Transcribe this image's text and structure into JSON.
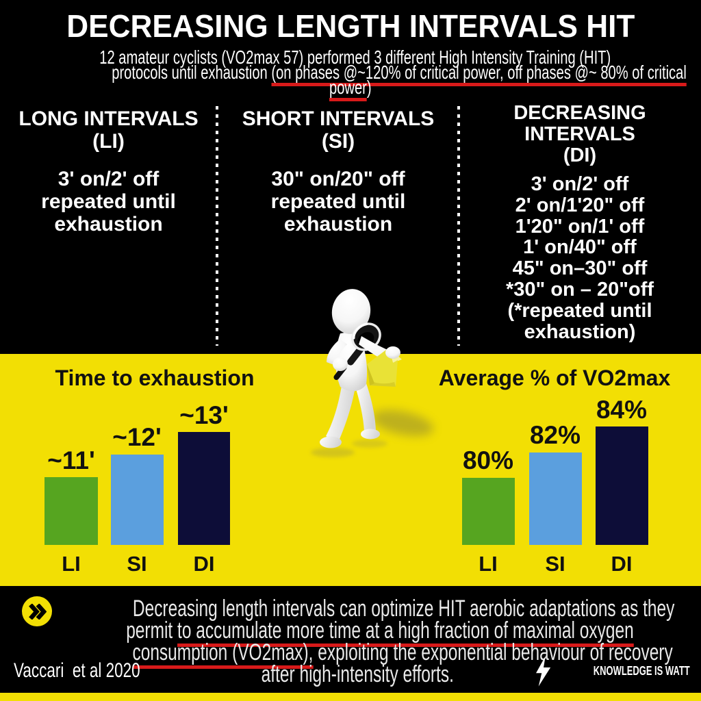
{
  "header": {
    "title": "DECREASING LENGTH INTERVALS HIT",
    "subtitle_line1": "12 amateur cyclists (VO2max 57) performed 3 different High Intensity Training (HIT)",
    "subtitle_line2_pre": "protocols until exhaustion ",
    "subtitle_line2_underlined": "(on phases @~120% of critical power, off phases @~ 80% of critical",
    "subtitle_line3_underlined": "power",
    "subtitle_line3_post": ")"
  },
  "protocols": {
    "li": {
      "title_line1": "LONG INTERVALS",
      "title_line2": "(LI)",
      "lines": [
        "3' on/2' off",
        "repeated until",
        "exhaustion"
      ]
    },
    "si": {
      "title_line1": "SHORT INTERVALS",
      "title_line2": "(SI)",
      "lines": [
        "30\" on/20\" off",
        "repeated until",
        "exhaustion"
      ]
    },
    "di": {
      "title_line1": "DECREASING",
      "title_line2": "INTERVALS",
      "title_line3": "(DI)",
      "lines": [
        "3' on/2' off",
        "2' on/1'20\" off",
        "1'20\" on/1' off",
        "1' on/40\" off",
        "45\" on–30\" off",
        "*30\" on – 20\"off",
        "(*repeated until",
        "exhaustion)"
      ]
    }
  },
  "chart_data": [
    {
      "type": "bar",
      "title": "Time to exhaustion",
      "categories": [
        "LI",
        "SI",
        "DI"
      ],
      "values": [
        11,
        12,
        13
      ],
      "value_labels": [
        "~11'",
        "~12'",
        "~13'"
      ],
      "colors": [
        "#56a520",
        "#5b9fde",
        "#0d0d38"
      ],
      "unit": "minutes",
      "grid": false,
      "legend": false
    },
    {
      "type": "bar",
      "title": "Average % of VO2max",
      "categories": [
        "LI",
        "SI",
        "DI"
      ],
      "values": [
        80,
        82,
        84
      ],
      "value_labels": [
        "80%",
        "82%",
        "84%"
      ],
      "colors": [
        "#56a520",
        "#5b9fde",
        "#0d0d38"
      ],
      "unit": "percent",
      "grid": false,
      "legend": false
    }
  ],
  "footer": {
    "line1": "Decreasing length intervals can optimize HIT aerobic adaptations as they",
    "line2_pre": "permit ",
    "line2_underlined": "to accumulate more time at a high fraction of maximal oxygen",
    "line3_underlined": "consumption (VO2max),",
    "line3_post": " exploiting the exponential behaviour of recovery",
    "line4": "after high-intensity efforts.",
    "citation": "Vaccari  et al 2020",
    "brand": "KNOWLEDGE IS WATT"
  },
  "colors": {
    "background": "#000000",
    "band": "#f2df04",
    "accent_red": "#d81a1a",
    "bar_green": "#56a520",
    "bar_blue": "#5b9fde",
    "bar_navy": "#0d0d38"
  }
}
